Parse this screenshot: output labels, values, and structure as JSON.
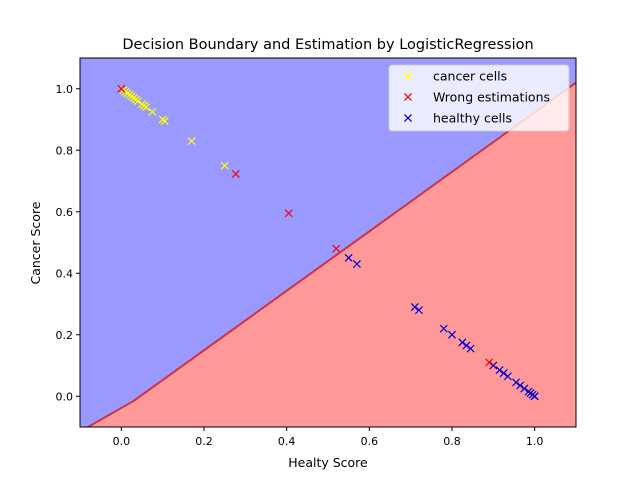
{
  "chart_data": {
    "type": "scatter",
    "title": "Decision Boundary and Estimation by LogisticRegression",
    "xlabel": "Healty Score",
    "ylabel": "Cancer Score",
    "xlim": [
      -0.1,
      1.1
    ],
    "ylim": [
      -0.1,
      1.1
    ],
    "xticks": [
      0.0,
      0.2,
      0.4,
      0.6,
      0.8,
      1.0
    ],
    "xtick_labels": [
      "0.0",
      "0.2",
      "0.4",
      "0.6",
      "0.8",
      "1.0"
    ],
    "yticks": [
      0.0,
      0.2,
      0.4,
      0.6,
      0.8,
      1.0
    ],
    "ytick_labels": [
      "0.0",
      "0.2",
      "0.4",
      "0.6",
      "0.8",
      "1.0"
    ],
    "grid": false,
    "legend_position": "top-right",
    "regions": [
      {
        "label": "cancer-region",
        "color": "#9999ff"
      },
      {
        "label": "healthy-region",
        "color": "#ff9999"
      }
    ],
    "decision_boundary": [
      [
        -0.1,
        -0.115
      ],
      [
        0.03,
        -0.015
      ],
      [
        1.1,
        1.02
      ]
    ],
    "series": [
      {
        "name": "cancer cells",
        "marker": "x",
        "color": "#ffff00",
        "points": [
          [
            0.005,
            0.995
          ],
          [
            0.01,
            0.99
          ],
          [
            0.015,
            0.985
          ],
          [
            0.02,
            0.98
          ],
          [
            0.025,
            0.975
          ],
          [
            0.03,
            0.97
          ],
          [
            0.035,
            0.965
          ],
          [
            0.04,
            0.96
          ],
          [
            0.05,
            0.95
          ],
          [
            0.055,
            0.945
          ],
          [
            0.06,
            0.94
          ],
          [
            0.075,
            0.925
          ],
          [
            0.1,
            0.9
          ],
          [
            0.105,
            0.895
          ],
          [
            0.17,
            0.83
          ],
          [
            0.25,
            0.75
          ]
        ]
      },
      {
        "name": "Wrong estimations",
        "marker": "x",
        "color": "#ff0000",
        "points": [
          [
            0.0,
            1.0
          ],
          [
            0.277,
            0.723
          ],
          [
            0.405,
            0.595
          ],
          [
            0.52,
            0.48
          ],
          [
            0.89,
            0.11
          ]
        ]
      },
      {
        "name": "healthy cells",
        "marker": "x",
        "color": "#0000cc",
        "points": [
          [
            0.55,
            0.45
          ],
          [
            0.57,
            0.43
          ],
          [
            0.71,
            0.29
          ],
          [
            0.72,
            0.28
          ],
          [
            0.78,
            0.22
          ],
          [
            0.8,
            0.2
          ],
          [
            0.825,
            0.175
          ],
          [
            0.835,
            0.165
          ],
          [
            0.845,
            0.155
          ],
          [
            0.9,
            0.1
          ],
          [
            0.915,
            0.085
          ],
          [
            0.925,
            0.075
          ],
          [
            0.935,
            0.065
          ],
          [
            0.955,
            0.045
          ],
          [
            0.965,
            0.035
          ],
          [
            0.975,
            0.025
          ],
          [
            0.985,
            0.015
          ],
          [
            0.99,
            0.01
          ],
          [
            0.995,
            0.005
          ],
          [
            1.0,
            0.0
          ],
          [
            1.0,
            0.0
          ]
        ]
      }
    ]
  }
}
